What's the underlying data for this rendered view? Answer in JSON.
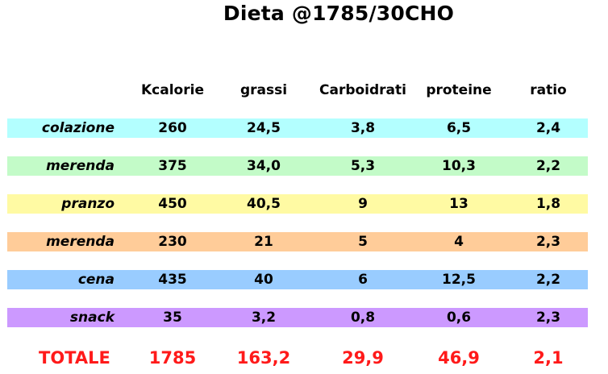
{
  "title": "Dieta @1785/30CHO",
  "columns": [
    "Kcalorie",
    "grassi",
    "Carboidrati",
    "proteine",
    "ratio"
  ],
  "rows": [
    {
      "label": "colazione",
      "color": "#b3ffff",
      "values": [
        "260",
        "24,5",
        "3,8",
        "6,5",
        "2,4"
      ]
    },
    {
      "label": "merenda",
      "color": "#c3fbc8",
      "values": [
        "375",
        "34,0",
        "5,3",
        "10,3",
        "2,2"
      ]
    },
    {
      "label": "pranzo",
      "color": "#fffaa3",
      "values": [
        "450",
        "40,5",
        "9",
        "13",
        "1,8"
      ]
    },
    {
      "label": "merenda",
      "color": "#ffcc99",
      "values": [
        "230",
        "21",
        "5",
        "4",
        "2,3"
      ]
    },
    {
      "label": "cena",
      "color": "#99ccff",
      "values": [
        "435",
        "40",
        "6",
        "12,5",
        "2,2"
      ]
    },
    {
      "label": "snack",
      "color": "#cc99ff",
      "values": [
        "35",
        "3,2",
        "0,8",
        "0,6",
        "2,3"
      ]
    }
  ],
  "total": {
    "label": "TOTALE",
    "color": "#ff1a1a",
    "values": [
      "1785",
      "163,2",
      "29,9",
      "46,9",
      "2,1"
    ]
  }
}
